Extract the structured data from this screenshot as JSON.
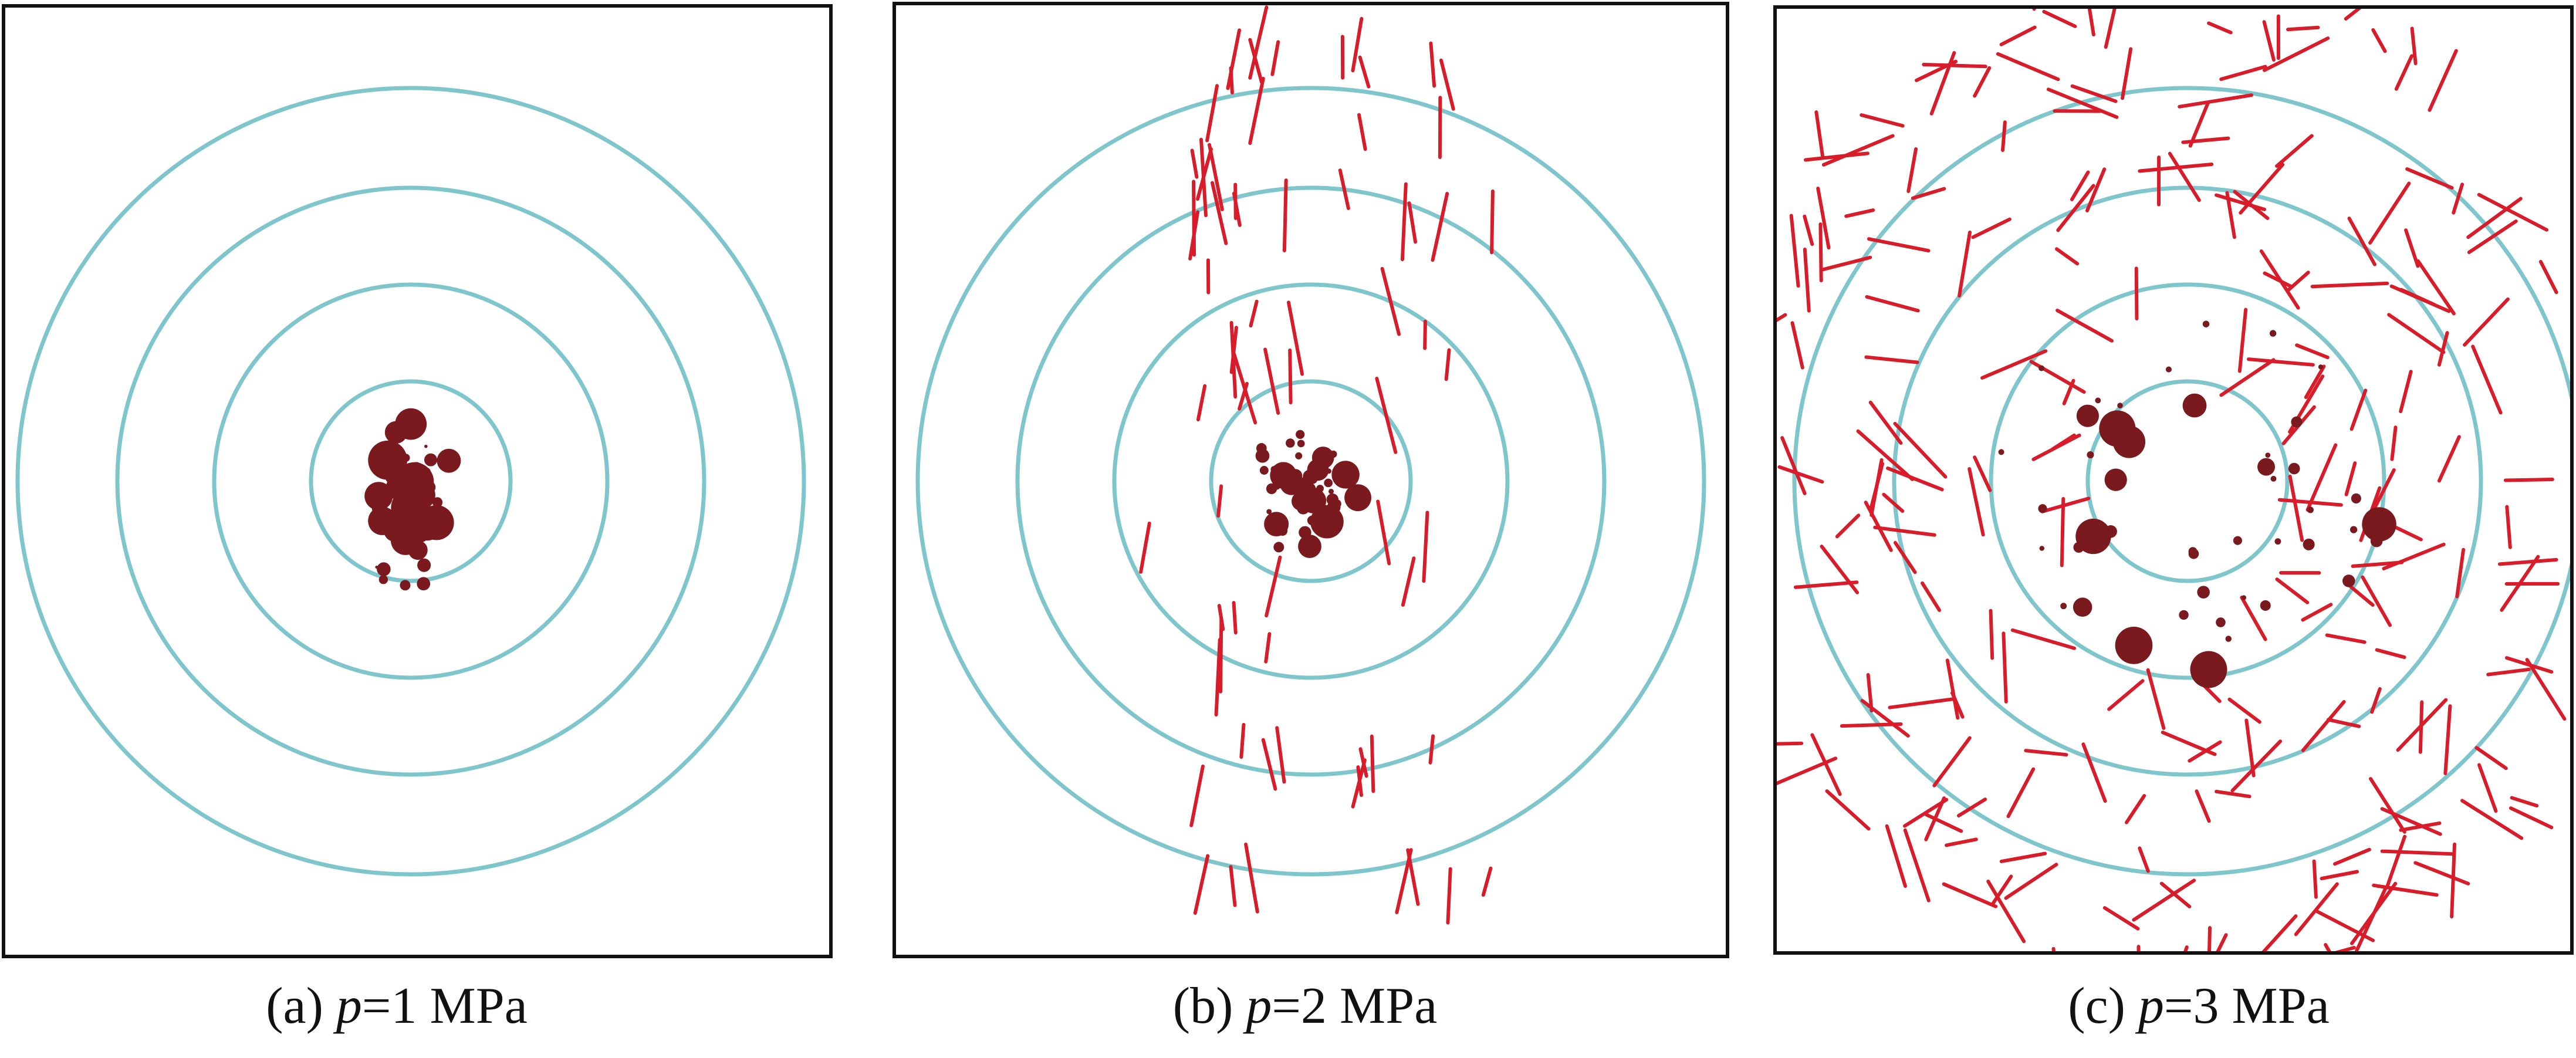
{
  "panels": [
    {
      "id": "a",
      "letter": "a",
      "var": "p",
      "value": "=1 MPa",
      "ae_colour": "#7a1a1f",
      "crack_colour": "#d81c2a",
      "ring_colour": "#7ec6cc",
      "ae_events": 60,
      "crack_segments": 0
    },
    {
      "id": "b",
      "letter": "b",
      "var": "p",
      "value": "=2 MPa",
      "ae_colour": "#7a1a1f",
      "crack_colour": "#d81c2a",
      "ring_colour": "#7ec6cc",
      "ae_events": 55,
      "crack_segments": 70
    },
    {
      "id": "c",
      "letter": "c",
      "var": "p",
      "value": "=3 MPa",
      "ae_colour": "#7a1a1f",
      "crack_colour": "#d81c2a",
      "ring_colour": "#7ec6cc",
      "ae_events": 45,
      "crack_segments": 260
    }
  ]
}
